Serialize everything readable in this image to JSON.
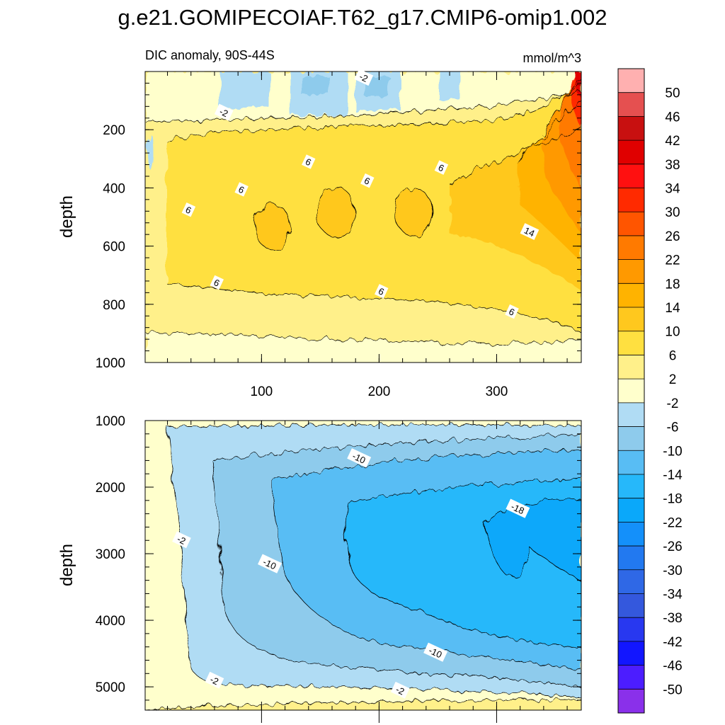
{
  "chart_data": {
    "type": "contour",
    "title": "g.e21.GOMIPECOIAF.T62_g17.CMIP6-omip1.002",
    "subtitle_left": "DIC anomaly, 90S-44S",
    "units": "mmol/m^3",
    "x_range": [
      1,
      372
    ],
    "x_ticks": [
      100,
      200,
      300
    ],
    "panels": [
      {
        "name": "upper",
        "ylabel": "depth",
        "ylim": [
          0,
          1000
        ],
        "y_ticks": [
          200,
          400,
          600,
          800,
          1000
        ],
        "contour_labels": [
          {
            "text": "-2",
            "x": 68,
            "y": 140
          },
          {
            "text": "-2",
            "x": 187,
            "y": 20
          },
          {
            "text": "6",
            "x": 140,
            "y": 310
          },
          {
            "text": "6",
            "x": 83,
            "y": 405
          },
          {
            "text": "6",
            "x": 38,
            "y": 475
          },
          {
            "text": "6",
            "x": 190,
            "y": 375
          },
          {
            "text": "6",
            "x": 253,
            "y": 330
          },
          {
            "text": "14",
            "x": 328,
            "y": 550
          },
          {
            "text": "6",
            "x": 62,
            "y": 725
          },
          {
            "text": "6",
            "x": 202,
            "y": 755
          },
          {
            "text": "6",
            "x": 313,
            "y": 825
          }
        ]
      },
      {
        "name": "lower",
        "ylabel": "depth",
        "ylim": [
          1000,
          5350
        ],
        "y_ticks": [
          1000,
          2000,
          3000,
          4000,
          5000
        ],
        "contour_labels": [
          {
            "text": "-10",
            "x": 183,
            "y": 1560
          },
          {
            "text": "-18",
            "x": 318,
            "y": 2320
          },
          {
            "text": "-2",
            "x": 32,
            "y": 2790
          },
          {
            "text": "-10",
            "x": 107,
            "y": 3150
          },
          {
            "text": "-10",
            "x": 248,
            "y": 4480
          },
          {
            "text": "-2",
            "x": 60,
            "y": 4900
          },
          {
            "text": "-2",
            "x": 218,
            "y": 5050
          }
        ]
      }
    ],
    "colorbar": {
      "levels": [
        "50",
        "46",
        "42",
        "38",
        "34",
        "30",
        "26",
        "22",
        "18",
        "14",
        "10",
        "6",
        "2",
        "-2",
        "-6",
        "-10",
        "-14",
        "-18",
        "-22",
        "-26",
        "-30",
        "-34",
        "-38",
        "-42",
        "-46",
        "-50"
      ],
      "colors": [
        "#ffb0b0",
        "#e55050",
        "#c81010",
        "#e00000",
        "#ff1010",
        "#ff2a00",
        "#ff5500",
        "#ff7a00",
        "#ff9900",
        "#ffb300",
        "#ffc81e",
        "#ffe040",
        "#fff08a",
        "#ffffcc",
        "#b0dcf4",
        "#8ecbec",
        "#58bdf4",
        "#26b8fa",
        "#0aa8fa",
        "#1490fa",
        "#2279f0",
        "#2f68e6",
        "#3458dd",
        "#2838f0",
        "#1216ff",
        "#4c1dff",
        "#8a30ea"
      ]
    }
  }
}
